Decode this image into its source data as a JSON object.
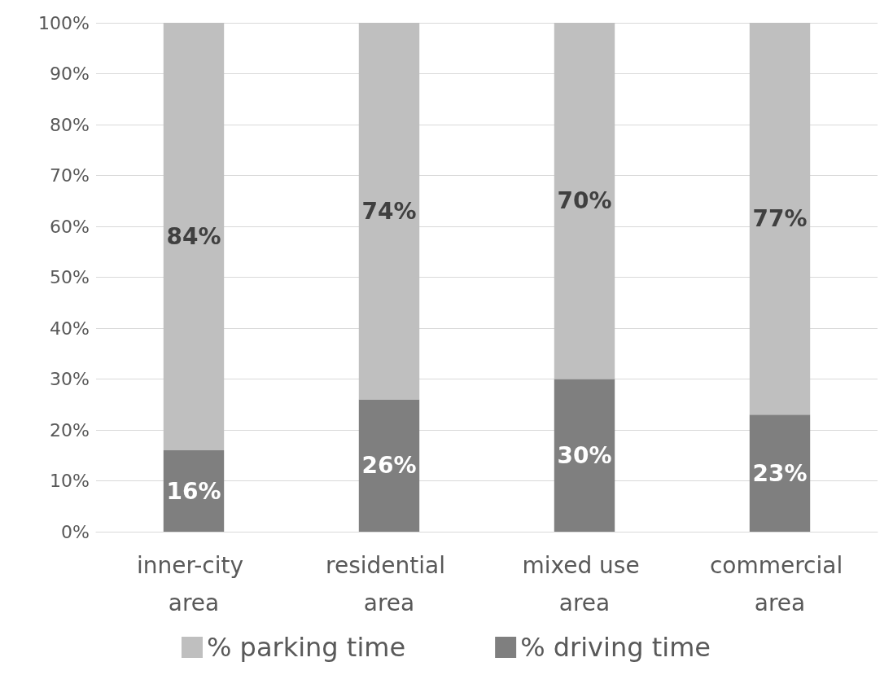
{
  "chart_data": {
    "type": "bar",
    "stacked": true,
    "categories": [
      "inner-city area",
      "residential area",
      "mixed use area",
      "commercial area"
    ],
    "series": [
      {
        "name": "% driving time",
        "color": "#7f7f7f",
        "values": [
          16,
          26,
          30,
          23
        ],
        "value_labels": [
          "16%",
          "26%",
          "30%",
          "23%"
        ]
      },
      {
        "name": "% parking time",
        "color": "#bfbfbf",
        "values": [
          84,
          74,
          70,
          77
        ],
        "value_labels": [
          "84%",
          "74%",
          "70%",
          "77%"
        ]
      }
    ],
    "ylim": [
      0,
      100
    ],
    "yticks": [
      {
        "value": 0,
        "label": "0%"
      },
      {
        "value": 10,
        "label": "10%"
      },
      {
        "value": 20,
        "label": "20%"
      },
      {
        "value": 30,
        "label": "30%"
      },
      {
        "value": 40,
        "label": "40%"
      },
      {
        "value": 50,
        "label": "50%"
      },
      {
        "value": 60,
        "label": "60%"
      },
      {
        "value": 70,
        "label": "70%"
      },
      {
        "value": 80,
        "label": "80%"
      },
      {
        "value": 90,
        "label": "90%"
      },
      {
        "value": 100,
        "label": "100%"
      }
    ],
    "grid": "y",
    "legend": "bottom"
  }
}
